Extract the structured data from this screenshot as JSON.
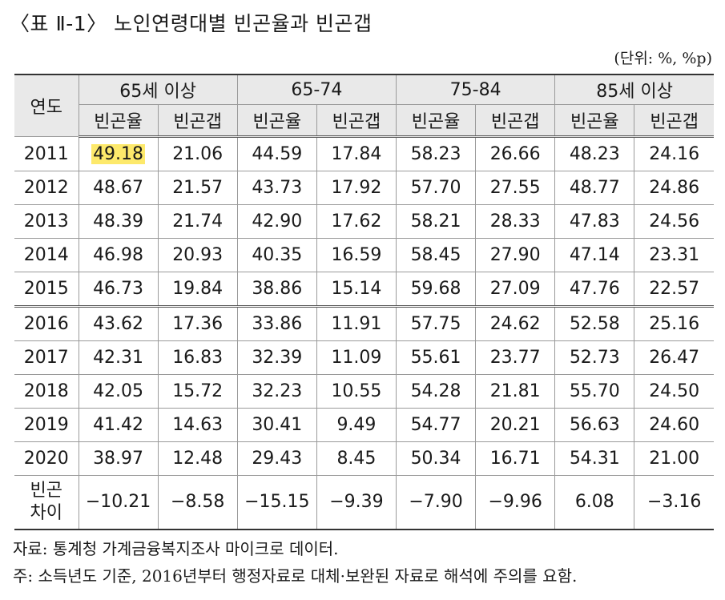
{
  "title": "〈표 Ⅱ-1〉 노인연령대별 빈곤율과 빈곤갭",
  "unit": "(단위: %, %p)",
  "header": {
    "year": "연도",
    "groups": [
      "65세 이상",
      "65-74",
      "75-84",
      "85세 이상"
    ],
    "sub": [
      "빈곤율",
      "빈곤갭",
      "빈곤율",
      "빈곤갭",
      "빈곤율",
      "빈곤갭",
      "빈곤율",
      "빈곤갭"
    ]
  },
  "rows": [
    {
      "year": "2011",
      "values": [
        "49.18",
        "21.06",
        "44.59",
        "17.84",
        "58.23",
        "26.66",
        "48.23",
        "24.16"
      ]
    },
    {
      "year": "2012",
      "values": [
        "48.67",
        "21.57",
        "43.73",
        "17.92",
        "57.70",
        "27.55",
        "48.77",
        "24.86"
      ]
    },
    {
      "year": "2013",
      "values": [
        "48.39",
        "21.74",
        "42.90",
        "17.62",
        "58.21",
        "28.33",
        "47.83",
        "24.56"
      ]
    },
    {
      "year": "2014",
      "values": [
        "46.98",
        "20.93",
        "40.35",
        "16.59",
        "58.45",
        "27.90",
        "47.14",
        "23.31"
      ]
    },
    {
      "year": "2015",
      "values": [
        "46.73",
        "19.84",
        "38.86",
        "15.14",
        "59.68",
        "27.09",
        "47.76",
        "22.57"
      ]
    },
    {
      "year": "2016",
      "values": [
        "43.62",
        "17.36",
        "33.86",
        "11.91",
        "57.75",
        "24.62",
        "52.58",
        "25.16"
      ]
    },
    {
      "year": "2017",
      "values": [
        "42.31",
        "16.83",
        "32.39",
        "11.09",
        "55.61",
        "23.77",
        "52.73",
        "26.47"
      ]
    },
    {
      "year": "2018",
      "values": [
        "42.05",
        "15.72",
        "32.23",
        "10.55",
        "54.28",
        "21.81",
        "55.70",
        "24.50"
      ]
    },
    {
      "year": "2019",
      "values": [
        "41.42",
        "14.63",
        "30.41",
        "9.49",
        "54.77",
        "20.21",
        "56.63",
        "24.60"
      ]
    },
    {
      "year": "2020",
      "values": [
        "38.97",
        "12.48",
        "29.43",
        "8.45",
        "50.34",
        "16.71",
        "54.31",
        "21.00"
      ]
    }
  ],
  "diff": {
    "label_line1": "빈곤",
    "label_line2": "차이",
    "values": [
      "−10.21",
      "−8.58",
      "−15.15",
      "−9.39",
      "−7.90",
      "−9.96",
      "6.08",
      "−3.16"
    ]
  },
  "highlight_color": "#fde96b",
  "notes": {
    "source": "자료: 통계청 가계금융복지조사 마이크로 데이터.",
    "note": "주: 소득년도 기준, 2016년부터 행정자료로 대체·보완된 자료로 해석에 주의를 요함."
  }
}
